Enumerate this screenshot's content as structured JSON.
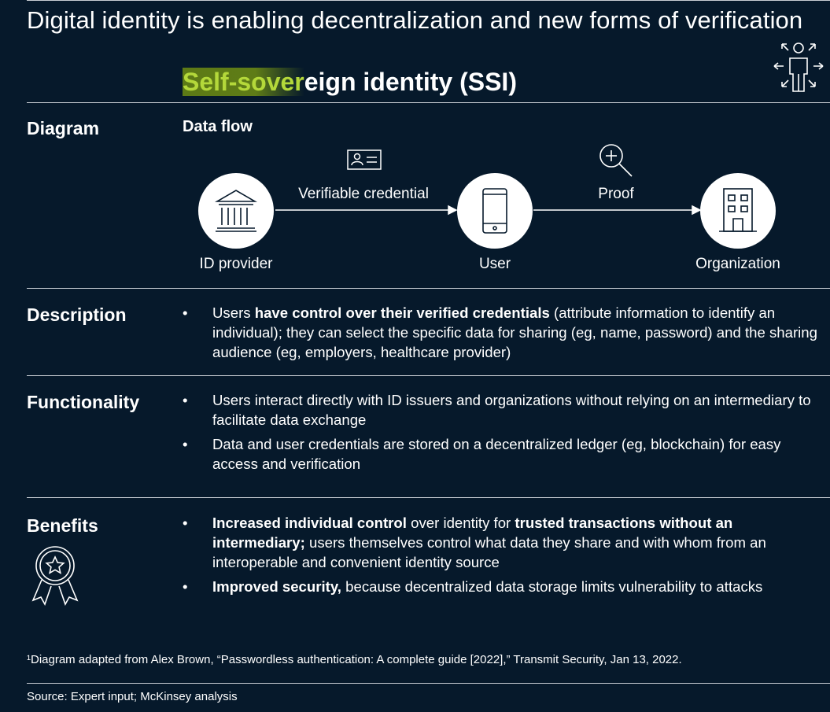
{
  "title": "Digital identity is enabling decentralization and new forms of verification",
  "subtitle_highlight": "Self-sover",
  "subtitle_rest": "eign identity (SSI)",
  "diagram": {
    "heading": "Diagram",
    "flow_heading": "Data flow",
    "nodes": [
      {
        "label": "ID provider",
        "icon": "bank-building-icon"
      },
      {
        "label": "User",
        "icon": "smartphone-icon"
      },
      {
        "label": "Organization",
        "icon": "office-building-icon"
      }
    ],
    "edges": [
      {
        "label": "Verifiable credential",
        "icon": "id-card-icon"
      },
      {
        "label": "Proof",
        "icon": "magnifier-plus-icon"
      }
    ]
  },
  "description": {
    "heading": "Description",
    "bullet_glyph": "•",
    "b1_pre": "Users ",
    "b1_bold": "have control over their verified credentials",
    "b1_post": " (attribute information to identify an individual); they can select the specific data for sharing (eg, name, password) and the sharing audience (eg, employers, healthcare provider)"
  },
  "functionality": {
    "heading": "Functionality",
    "b1": "Users interact directly with ID issuers and organizations without relying on an intermediary to facilitate data exchange",
    "b2": "Data and user credentials are stored on a decentralized ledger (eg, blockchain) for easy access and verification"
  },
  "benefits": {
    "heading": "Benefits",
    "b1_bold1": "Increased individual control",
    "b1_mid": " over identity for ",
    "b1_bold2": "trusted transactions without an intermediary;",
    "b1_post": " users themselves control what data they share and with whom from an interoperable and convenient identity source",
    "b2_bold": "Improved security,",
    "b2_post": " because decentralized data storage limits vulnerability to attacks"
  },
  "footnote": "¹Diagram adapted from Alex Brown, “Passwordless authentication: A complete guide [2022],” Transmit Security, Jan 13, 2022.",
  "source": "Source: Expert input; McKinsey analysis",
  "colors": {
    "background": "#06192b",
    "highlight_text": "#b4d83a",
    "highlight_bg": "#5d7a16"
  }
}
